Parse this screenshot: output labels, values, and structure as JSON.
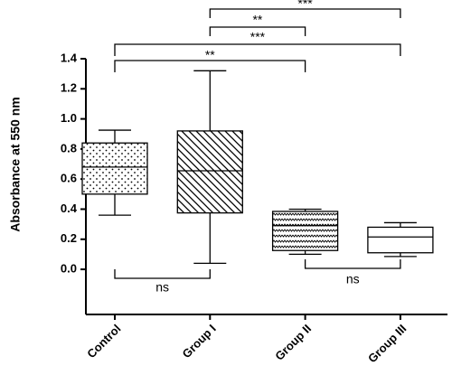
{
  "chart_data": {
    "type": "box",
    "y_label": "Absorbance at 550 nm",
    "categories": [
      "Control",
      "Group I",
      "Group II",
      "Group III"
    ],
    "boxes": [
      {
        "min": 0.36,
        "q1": 0.5,
        "median": 0.68,
        "q3": 0.84,
        "max": 0.925
      },
      {
        "min": 0.04,
        "q1": 0.375,
        "median": 0.655,
        "q3": 0.92,
        "max": 1.32
      },
      {
        "min": 0.1,
        "q1": 0.125,
        "median": 0.29,
        "q3": 0.385,
        "max": 0.4
      },
      {
        "min": 0.085,
        "q1": 0.11,
        "median": 0.215,
        "q3": 0.28,
        "max": 0.31
      }
    ],
    "ylim": [
      -0.3,
      1.4
    ],
    "yticks": [
      {
        "value": 0,
        "label": "0.0"
      },
      0.2,
      0.4,
      0.6,
      0.8,
      {
        "value": 1,
        "label": "1.0"
      },
      1.2,
      1.4
    ],
    "annotations": [
      "**",
      "***",
      "**",
      "***",
      "ns",
      "ns"
    ]
  }
}
